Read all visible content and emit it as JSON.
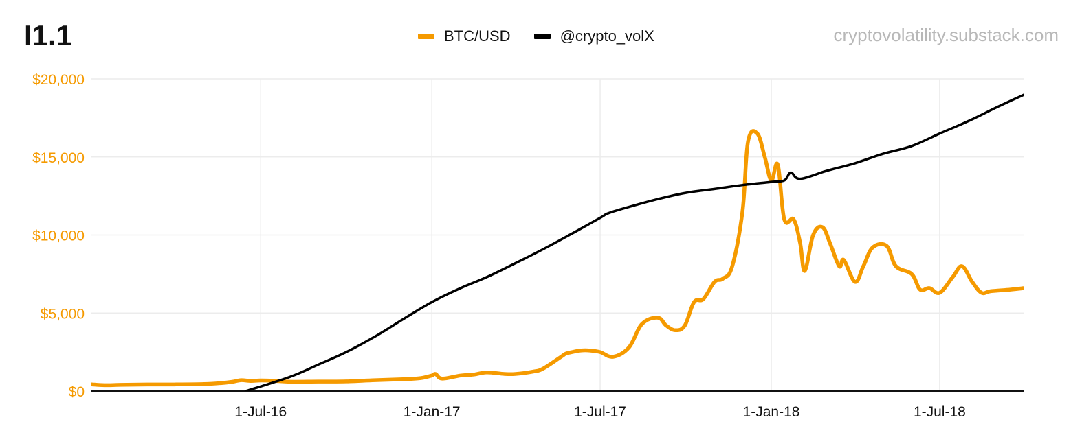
{
  "header": {
    "title": "I1.1",
    "source": "cryptovolatility.substack.com"
  },
  "colors": {
    "btc": "#f59a00",
    "volx": "#000000",
    "grid": "#ececec",
    "axis": "#111111",
    "ytick": "#f59a00",
    "xtick": "#111111"
  },
  "chart_data": {
    "type": "line",
    "title": "I1.1",
    "legend": "top-center",
    "grid": true,
    "y_axis": {
      "ylim": [
        0,
        20000
      ],
      "tick_values": [
        0,
        5000,
        10000,
        15000,
        20000
      ],
      "tick_labels": [
        "$0",
        "$5,000",
        "$10,000",
        "$15,000",
        "$20,000"
      ]
    },
    "x_axis": {
      "range": [
        "2016-01-01",
        "2018-09-30"
      ],
      "tick_dates": [
        "2016-07-01",
        "2017-01-01",
        "2017-07-01",
        "2018-01-01",
        "2018-07-01"
      ],
      "tick_labels": [
        "1-Jul-16",
        "1-Jan-17",
        "1-Jul-17",
        "1-Jan-18",
        "1-Jul-18"
      ]
    },
    "series": [
      {
        "name": "BTC/USD",
        "color": "#f59a00",
        "x": [
          "2016-01-01",
          "2016-01-15",
          "2016-02-01",
          "2016-03-01",
          "2016-04-01",
          "2016-05-01",
          "2016-05-20",
          "2016-06-01",
          "2016-06-10",
          "2016-06-20",
          "2016-07-01",
          "2016-07-15",
          "2016-08-01",
          "2016-09-01",
          "2016-10-01",
          "2016-11-01",
          "2016-12-01",
          "2016-12-20",
          "2017-01-01",
          "2017-01-05",
          "2017-01-12",
          "2017-02-01",
          "2017-02-15",
          "2017-03-01",
          "2017-03-20",
          "2017-04-01",
          "2017-04-20",
          "2017-05-01",
          "2017-05-20",
          "2017-05-25",
          "2017-06-01",
          "2017-06-10",
          "2017-06-20",
          "2017-07-01",
          "2017-07-15",
          "2017-08-01",
          "2017-08-15",
          "2017-09-01",
          "2017-09-10",
          "2017-09-20",
          "2017-09-30",
          "2017-10-10",
          "2017-10-20",
          "2017-11-01",
          "2017-11-10",
          "2017-11-20",
          "2017-12-01",
          "2017-12-07",
          "2017-12-17",
          "2017-12-25",
          "2018-01-01",
          "2018-01-08",
          "2018-01-15",
          "2018-01-25",
          "2018-02-01",
          "2018-02-06",
          "2018-02-15",
          "2018-02-25",
          "2018-03-05",
          "2018-03-15",
          "2018-03-20",
          "2018-04-01",
          "2018-04-10",
          "2018-04-20",
          "2018-05-05",
          "2018-05-15",
          "2018-06-01",
          "2018-06-10",
          "2018-06-20",
          "2018-07-01",
          "2018-07-15",
          "2018-07-25",
          "2018-08-05",
          "2018-08-15",
          "2018-08-25",
          "2018-09-15",
          "2018-09-30"
        ],
        "values": [
          430,
          380,
          400,
          420,
          425,
          450,
          520,
          600,
          700,
          650,
          680,
          660,
          600,
          610,
          620,
          700,
          760,
          830,
          1000,
          1100,
          800,
          1000,
          1060,
          1200,
          1100,
          1100,
          1250,
          1450,
          2200,
          2400,
          2500,
          2600,
          2600,
          2500,
          2200,
          2800,
          4300,
          4700,
          4200,
          3900,
          4200,
          5700,
          5900,
          7000,
          7200,
          8000,
          11500,
          16000,
          16500,
          15000,
          13500,
          14500,
          11000,
          11000,
          9500,
          7700,
          10000,
          10500,
          9500,
          8000,
          8400,
          7000,
          8000,
          9200,
          9300,
          8000,
          7500,
          6500,
          6600,
          6300,
          7300,
          8000,
          7000,
          6300,
          6400,
          6500,
          6600
        ]
      },
      {
        "name": "@crypto_volX",
        "color": "#000000",
        "x": [
          "2016-06-15",
          "2016-08-01",
          "2016-09-01",
          "2016-10-01",
          "2016-11-01",
          "2016-12-01",
          "2017-01-01",
          "2017-02-01",
          "2017-03-01",
          "2017-04-01",
          "2017-05-01",
          "2017-06-01",
          "2017-07-01",
          "2017-07-10",
          "2017-08-01",
          "2017-09-01",
          "2017-10-01",
          "2017-11-01",
          "2017-12-01",
          "2018-01-01",
          "2018-01-15",
          "2018-01-22",
          "2018-02-01",
          "2018-03-01",
          "2018-04-01",
          "2018-05-01",
          "2018-06-01",
          "2018-07-01",
          "2018-08-01",
          "2018-09-01",
          "2018-09-30"
        ],
        "values": [
          0,
          900,
          1700,
          2500,
          3500,
          4600,
          5700,
          6600,
          7300,
          8200,
          9100,
          10100,
          11100,
          11400,
          11800,
          12300,
          12700,
          12950,
          13200,
          13400,
          13500,
          14000,
          13600,
          14100,
          14600,
          15200,
          15700,
          16500,
          17300,
          18200,
          19000
        ]
      }
    ]
  }
}
